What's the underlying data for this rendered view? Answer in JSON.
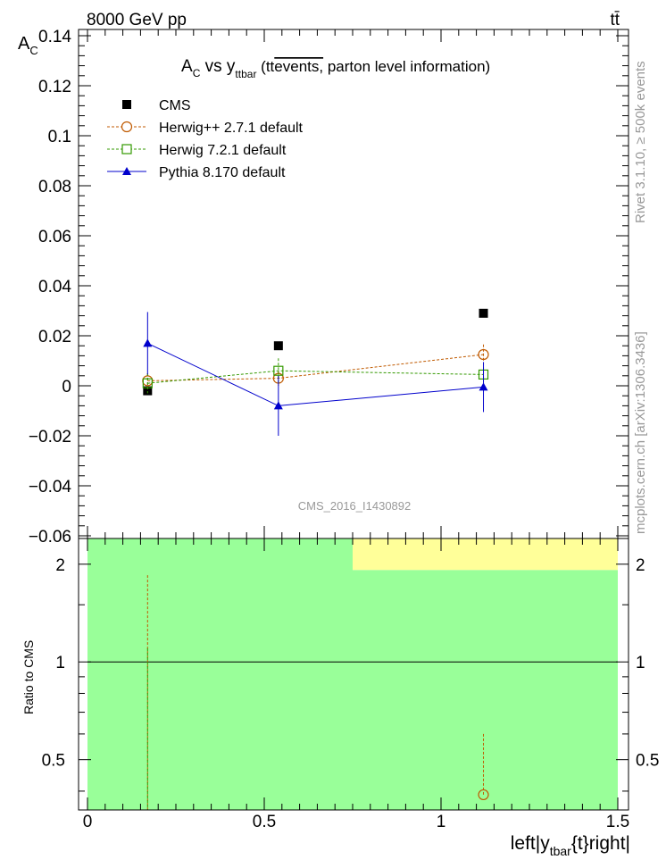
{
  "header": {
    "energy_label": "8000 GeV pp",
    "process_label": "tt̄"
  },
  "side_labels": {
    "rivet": "Rivet 3.1.10, ≥ 500k events",
    "mcplots": "mcplots.cern.ch [arXiv:1306.3436]"
  },
  "colors": {
    "cms": "#000000",
    "herwigpp": "#c05a00",
    "herwig7": "#339900",
    "pythia": "#0000cc",
    "band_green": "#99ff99",
    "band_yellow": "#ffff99",
    "watermark": "#999999"
  },
  "chart_data": [
    {
      "type": "scatter",
      "title": "A_C vs y_ttbar (tt̄ events, parton level information)",
      "title_parts": {
        "a": "A",
        "a_sub": "C",
        "vs": " vs y",
        "y_sub": "ttbar",
        "tail_open": " (tt",
        "tail_over": "events,",
        "tail_close": " parton level information)"
      },
      "ylabel": "A",
      "ylabel_sub": "C",
      "xlim": [
        0,
        1.5
      ],
      "ylim": [
        -0.06,
        0.14
      ],
      "y_ticks": [
        -0.06,
        -0.04,
        -0.02,
        0,
        0.02,
        0.04,
        0.06,
        0.08,
        0.1,
        0.12,
        0.14
      ],
      "y_tick_labels": [
        "−0.06",
        "−0.04",
        "−0.02",
        "0",
        "0.02",
        "0.04",
        "0.06",
        "0.08",
        "0.1",
        "0.12",
        "0.14"
      ],
      "watermark": "CMS_2016_I1430892",
      "legend_position": "top-left",
      "series": [
        {
          "name": "CMS",
          "key": "cms",
          "style": "data",
          "x": [
            0.17,
            0.54,
            1.12
          ],
          "y": [
            -0.002,
            0.016,
            0.029
          ],
          "err": [
            0.001,
            0.001,
            0.001
          ]
        },
        {
          "name": "Herwig++ 2.7.1 default",
          "key": "herwigpp",
          "style": "circle-dashed",
          "x": [
            0.17,
            0.54,
            1.12
          ],
          "y": [
            0.002,
            0.003,
            0.0125
          ],
          "err": [
            0.003,
            0.003,
            0.004
          ]
        },
        {
          "name": "Herwig 7.2.1 default",
          "key": "herwig7",
          "style": "square-dashed",
          "x": [
            0.17,
            0.54,
            1.12
          ],
          "y": [
            0.001,
            0.006,
            0.0045
          ],
          "err": [
            0.004,
            0.005,
            0.003
          ]
        },
        {
          "name": "Pythia 8.170 default",
          "key": "pythia",
          "style": "triangle-solid",
          "x": [
            0.17,
            0.54,
            1.12
          ],
          "y": [
            0.017,
            -0.008,
            -0.0005
          ],
          "err": [
            0.0125,
            0.012,
            0.01
          ]
        }
      ]
    },
    {
      "type": "line",
      "title": "Ratio to CMS",
      "ylabel": "Ratio to CMS",
      "xlabel": "left|y_tbar{t}right|",
      "xlabel_parts": {
        "pre": "left|y",
        "sub": "tbar",
        "post": "{t}right|"
      },
      "xlim": [
        0,
        1.5
      ],
      "ylim": [
        0.35,
        2.4
      ],
      "scale": "log",
      "x_ticks": [
        0,
        0.5,
        1,
        1.5
      ],
      "x_tick_labels": [
        "0",
        "0.5",
        "1",
        "1.5"
      ],
      "y_ticks": [
        0.5,
        1,
        2
      ],
      "y_tick_labels": [
        "0.5",
        "1",
        "2"
      ],
      "bands": [
        {
          "x0": 0,
          "x1": 0.75,
          "lo": 0.35,
          "hi": 2.4,
          "color": "band_green"
        },
        {
          "x0": 0.75,
          "x1": 1.5,
          "lo": 0.35,
          "hi": 1.92,
          "color": "band_green"
        },
        {
          "x0": 0.75,
          "x1": 1.5,
          "lo": 1.92,
          "hi": 2.4,
          "color": "band_yellow"
        }
      ],
      "reference": 1,
      "error_segments": [
        {
          "key": "herwigpp",
          "x": 0.17,
          "lo": 0.35,
          "hi": 1.85
        },
        {
          "key": "herwig7",
          "x": 0.17,
          "lo": 0.35,
          "hi": 1.1
        },
        {
          "key": "herwigpp",
          "x": 1.12,
          "lo": 0.39,
          "hi": 0.6
        }
      ],
      "points": [
        {
          "key": "herwigpp",
          "x": 1.12,
          "y": 0.39,
          "marker": "circle"
        }
      ]
    }
  ]
}
